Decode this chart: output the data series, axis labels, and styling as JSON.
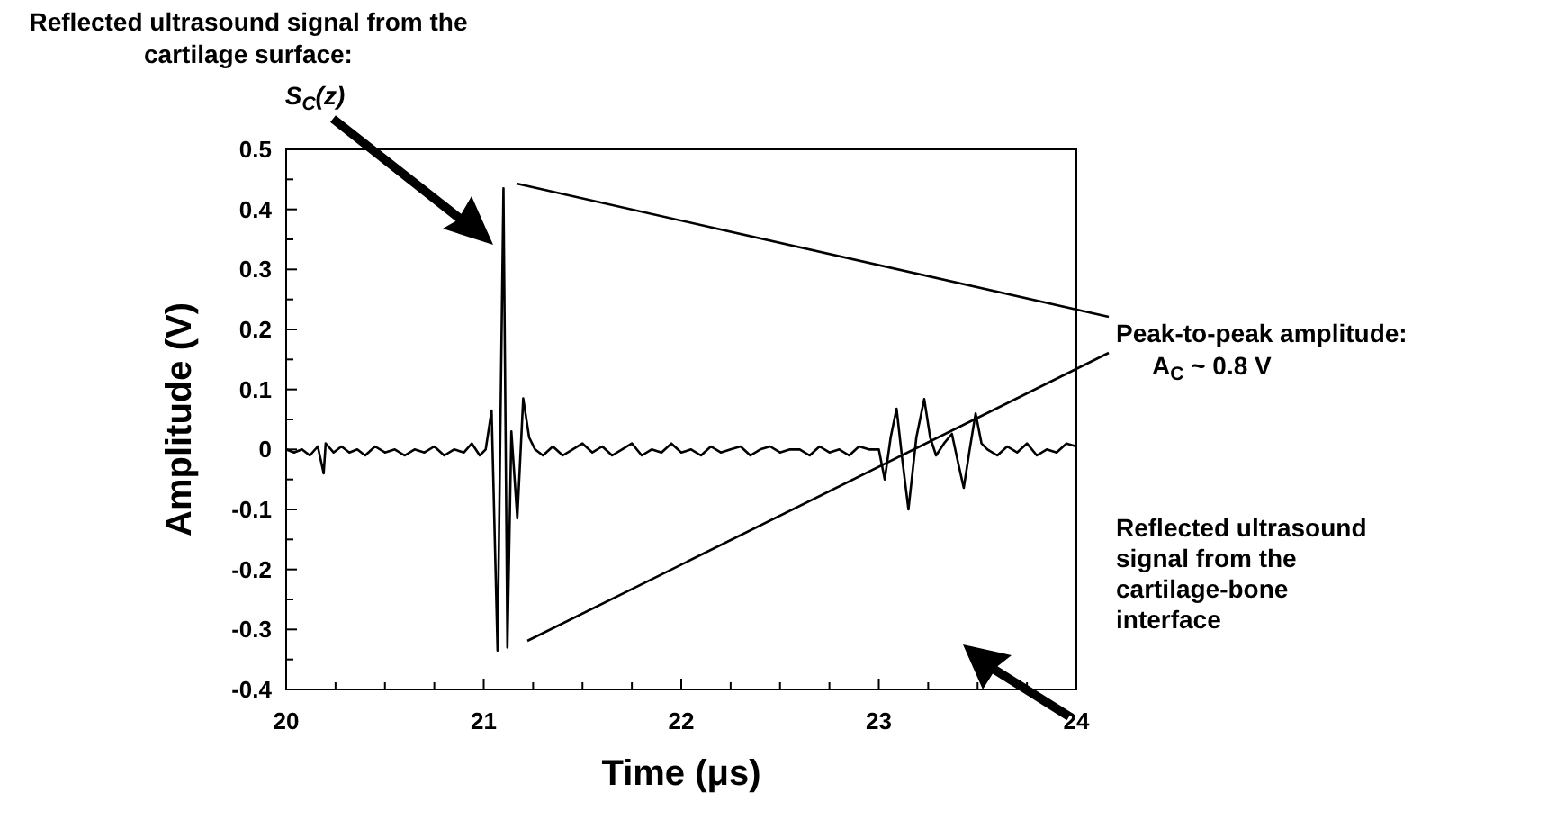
{
  "chart_data": {
    "type": "line",
    "xlabel": "Time (μs)",
    "ylabel": "Amplitude (V)",
    "annotations": [
      "Reflected ultrasound signal from the cartilage surface:",
      "S$_{C}$(z)",
      "Peak-to-peak amplitude:",
      "A$_{C}$ ~ 0.8 V",
      "Reflected ultrasound signal from the cartilage-bone interface"
    ],
    "xlim": [
      20,
      24
    ],
    "xticks": [
      20,
      {
        "value": 20.25,
        "label": null
      },
      {
        "value": 20.5,
        "label": null
      },
      {
        "value": 20.75,
        "label": null
      },
      21,
      {
        "value": 21.25,
        "label": null
      },
      {
        "value": 21.5,
        "label": null
      },
      {
        "value": 21.75,
        "label": null
      },
      22,
      {
        "value": 22.25,
        "label": null
      },
      {
        "value": 22.5,
        "label": null
      },
      {
        "value": 22.75,
        "label": null
      },
      23,
      {
        "value": 23.25,
        "label": null
      },
      {
        "value": 23.5,
        "label": null
      },
      {
        "value": 23.75,
        "label": null
      },
      24
    ],
    "ylim": [
      -0.4,
      0.5
    ],
    "yticks": [
      -0.4,
      {
        "value": -0.35,
        "label": null
      },
      -0.3,
      {
        "value": -0.25,
        "label": null
      },
      -0.2,
      {
        "value": -0.15,
        "label": null
      },
      -0.1,
      {
        "value": -0.05,
        "label": null
      },
      0,
      {
        "value": 0.05,
        "label": null
      },
      0.1,
      {
        "value": 0.15,
        "label": null
      },
      0.2,
      {
        "value": 0.25,
        "label": null
      },
      0.3,
      {
        "value": 0.35,
        "label": null
      },
      0.4,
      {
        "value": 0.45,
        "label": null
      },
      0.5
    ],
    "grid": false,
    "marker": "none",
    "line_style": "solid",
    "series": [
      {
        "color": "#000000",
        "x": [
          20.0,
          20.04,
          20.08,
          20.12,
          20.16,
          20.19,
          20.2,
          20.24,
          20.28,
          20.32,
          20.36,
          20.4,
          20.45,
          20.5,
          20.55,
          20.6,
          20.65,
          20.7,
          20.75,
          20.8,
          20.85,
          20.9,
          20.94,
          20.98,
          21.01,
          21.04,
          21.07,
          21.1,
          21.12,
          21.14,
          21.17,
          21.2,
          21.23,
          21.26,
          21.3,
          21.35,
          21.4,
          21.45,
          21.5,
          21.55,
          21.6,
          21.65,
          21.7,
          21.75,
          21.8,
          21.85,
          21.9,
          21.95,
          22.0,
          22.05,
          22.1,
          22.15,
          22.2,
          22.25,
          22.3,
          22.35,
          22.4,
          22.45,
          22.5,
          22.55,
          22.6,
          22.65,
          22.7,
          22.75,
          22.8,
          22.85,
          22.9,
          22.95,
          23.0,
          23.03,
          23.06,
          23.09,
          23.12,
          23.15,
          23.19,
          23.23,
          23.26,
          23.29,
          23.33,
          23.37,
          23.4,
          23.43,
          23.46,
          23.49,
          23.52,
          23.55,
          23.6,
          23.65,
          23.7,
          23.75,
          23.8,
          23.85,
          23.9,
          23.95,
          24.0
        ],
        "values": [
          0.0,
          -0.005,
          0.0,
          -0.01,
          0.005,
          -0.04,
          0.01,
          -0.005,
          0.005,
          -0.005,
          0.0,
          -0.01,
          0.005,
          -0.005,
          0.0,
          -0.01,
          0.0,
          -0.005,
          0.005,
          -0.01,
          0.0,
          -0.005,
          0.01,
          -0.01,
          0.0,
          0.065,
          -0.335,
          0.435,
          -0.33,
          0.03,
          -0.115,
          0.085,
          0.02,
          0.0,
          -0.01,
          0.005,
          -0.01,
          0.0,
          0.01,
          -0.005,
          0.005,
          -0.01,
          0.0,
          0.01,
          -0.01,
          0.0,
          -0.005,
          0.01,
          -0.005,
          0.0,
          -0.01,
          0.005,
          -0.005,
          0.0,
          0.005,
          -0.01,
          0.0,
          0.005,
          -0.005,
          0.0,
          0.0,
          -0.01,
          0.005,
          -0.005,
          0.0,
          -0.01,
          0.005,
          0.0,
          0.0,
          -0.05,
          0.02,
          0.068,
          -0.02,
          -0.1,
          0.02,
          0.084,
          0.02,
          -0.01,
          0.01,
          0.026,
          -0.02,
          -0.064,
          0.0,
          0.06,
          0.01,
          0.0,
          -0.01,
          0.005,
          -0.005,
          0.01,
          -0.01,
          0.0,
          -0.005,
          0.01,
          0.005
        ]
      }
    ]
  }
}
